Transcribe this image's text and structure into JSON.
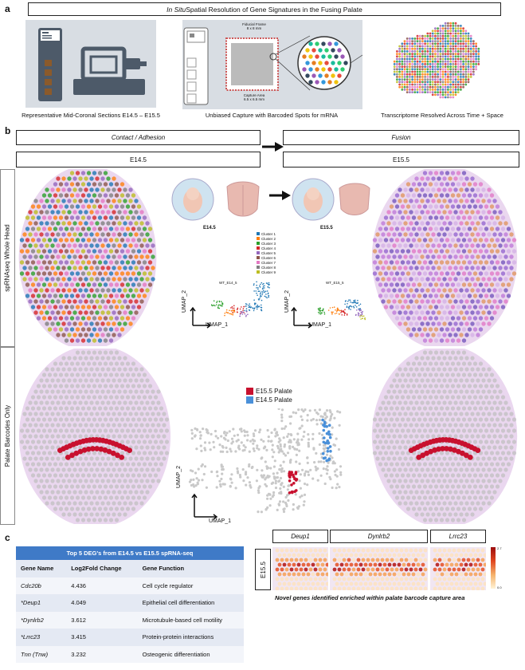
{
  "panel_a": {
    "letter": "a",
    "title_italic": "In Situ",
    "title_rest": " Spatial Resolution of Gene Signatures in the Fusing Palate",
    "captions": [
      "Representative Mid-Coronal Sections E14.5 – E15.5",
      "Unbiased Capture with Barcoded Spots for mRNA",
      "Transcriptome Resolved Across Time + Space"
    ],
    "fiducial_frame": "Fiducial Frame",
    "fiducial_size": "8 x 8 mm",
    "capture_area": "Capture Area",
    "capture_size": "6.5 x 6.5 mm"
  },
  "panel_b": {
    "letter": "b",
    "stage_left": "Contact / Adhesion",
    "stage_right": "Fusion",
    "age_left": "E14.5",
    "age_right": "E15.5",
    "row_top_label": "spRNAseq Whole Head",
    "row_bottom_label": "Palate Barcodes Only",
    "embryo_left": "E14.5",
    "embryo_right": "E15.5",
    "umap_title_left": "WT_E14_5",
    "umap_title_right": "WT_E15_5",
    "umap_x": "UMAP_1",
    "umap_y": "UMAP_2",
    "clusters": [
      {
        "name": "Cluster 1",
        "color": "#1f77b4"
      },
      {
        "name": "Cluster 2",
        "color": "#ff7f0e"
      },
      {
        "name": "Cluster 3",
        "color": "#2ca02c"
      },
      {
        "name": "Cluster 4",
        "color": "#d62728"
      },
      {
        "name": "Cluster 5",
        "color": "#9467bd"
      },
      {
        "name": "Cluster 6",
        "color": "#8c564b"
      },
      {
        "name": "Cluster 7",
        "color": "#e377c2"
      },
      {
        "name": "Cluster 8",
        "color": "#7f7f7f"
      },
      {
        "name": "Cluster 9",
        "color": "#bcbd22"
      }
    ],
    "palate_legend": [
      {
        "name": "E15.5 Palate",
        "color": "#c8102e"
      },
      {
        "name": "E14.5 Palate",
        "color": "#4a90d9"
      }
    ]
  },
  "panel_c": {
    "letter": "c",
    "table_title": "Top 5 DEG's from E14.5 vs E15.5 spRNA-seq",
    "headers": [
      "Gene Name",
      "Log2Fold Change",
      "Gene Function"
    ],
    "rows": [
      [
        "Cdc20b",
        "4.436",
        "Cell cycle regulator"
      ],
      [
        "*Deup1",
        "4.049",
        "Epithelial cell differentiation"
      ],
      [
        "*Dynlrb2",
        "3.612",
        "Microtubule-based cell motility"
      ],
      [
        "*Lrrc23",
        "3.415",
        "Protein-protein interactions"
      ],
      [
        "Tnn (Tnw)",
        "3.232",
        "Osteogenic differentiation"
      ]
    ],
    "genes": [
      "Deup1",
      "Dynlrb2",
      "Lrrc23"
    ],
    "stage": "E15.5",
    "colorbar_max": "2.7",
    "colorbar_min": "0.0",
    "footnote": "Novel genes identified enriched within palate barcode capture area"
  }
}
